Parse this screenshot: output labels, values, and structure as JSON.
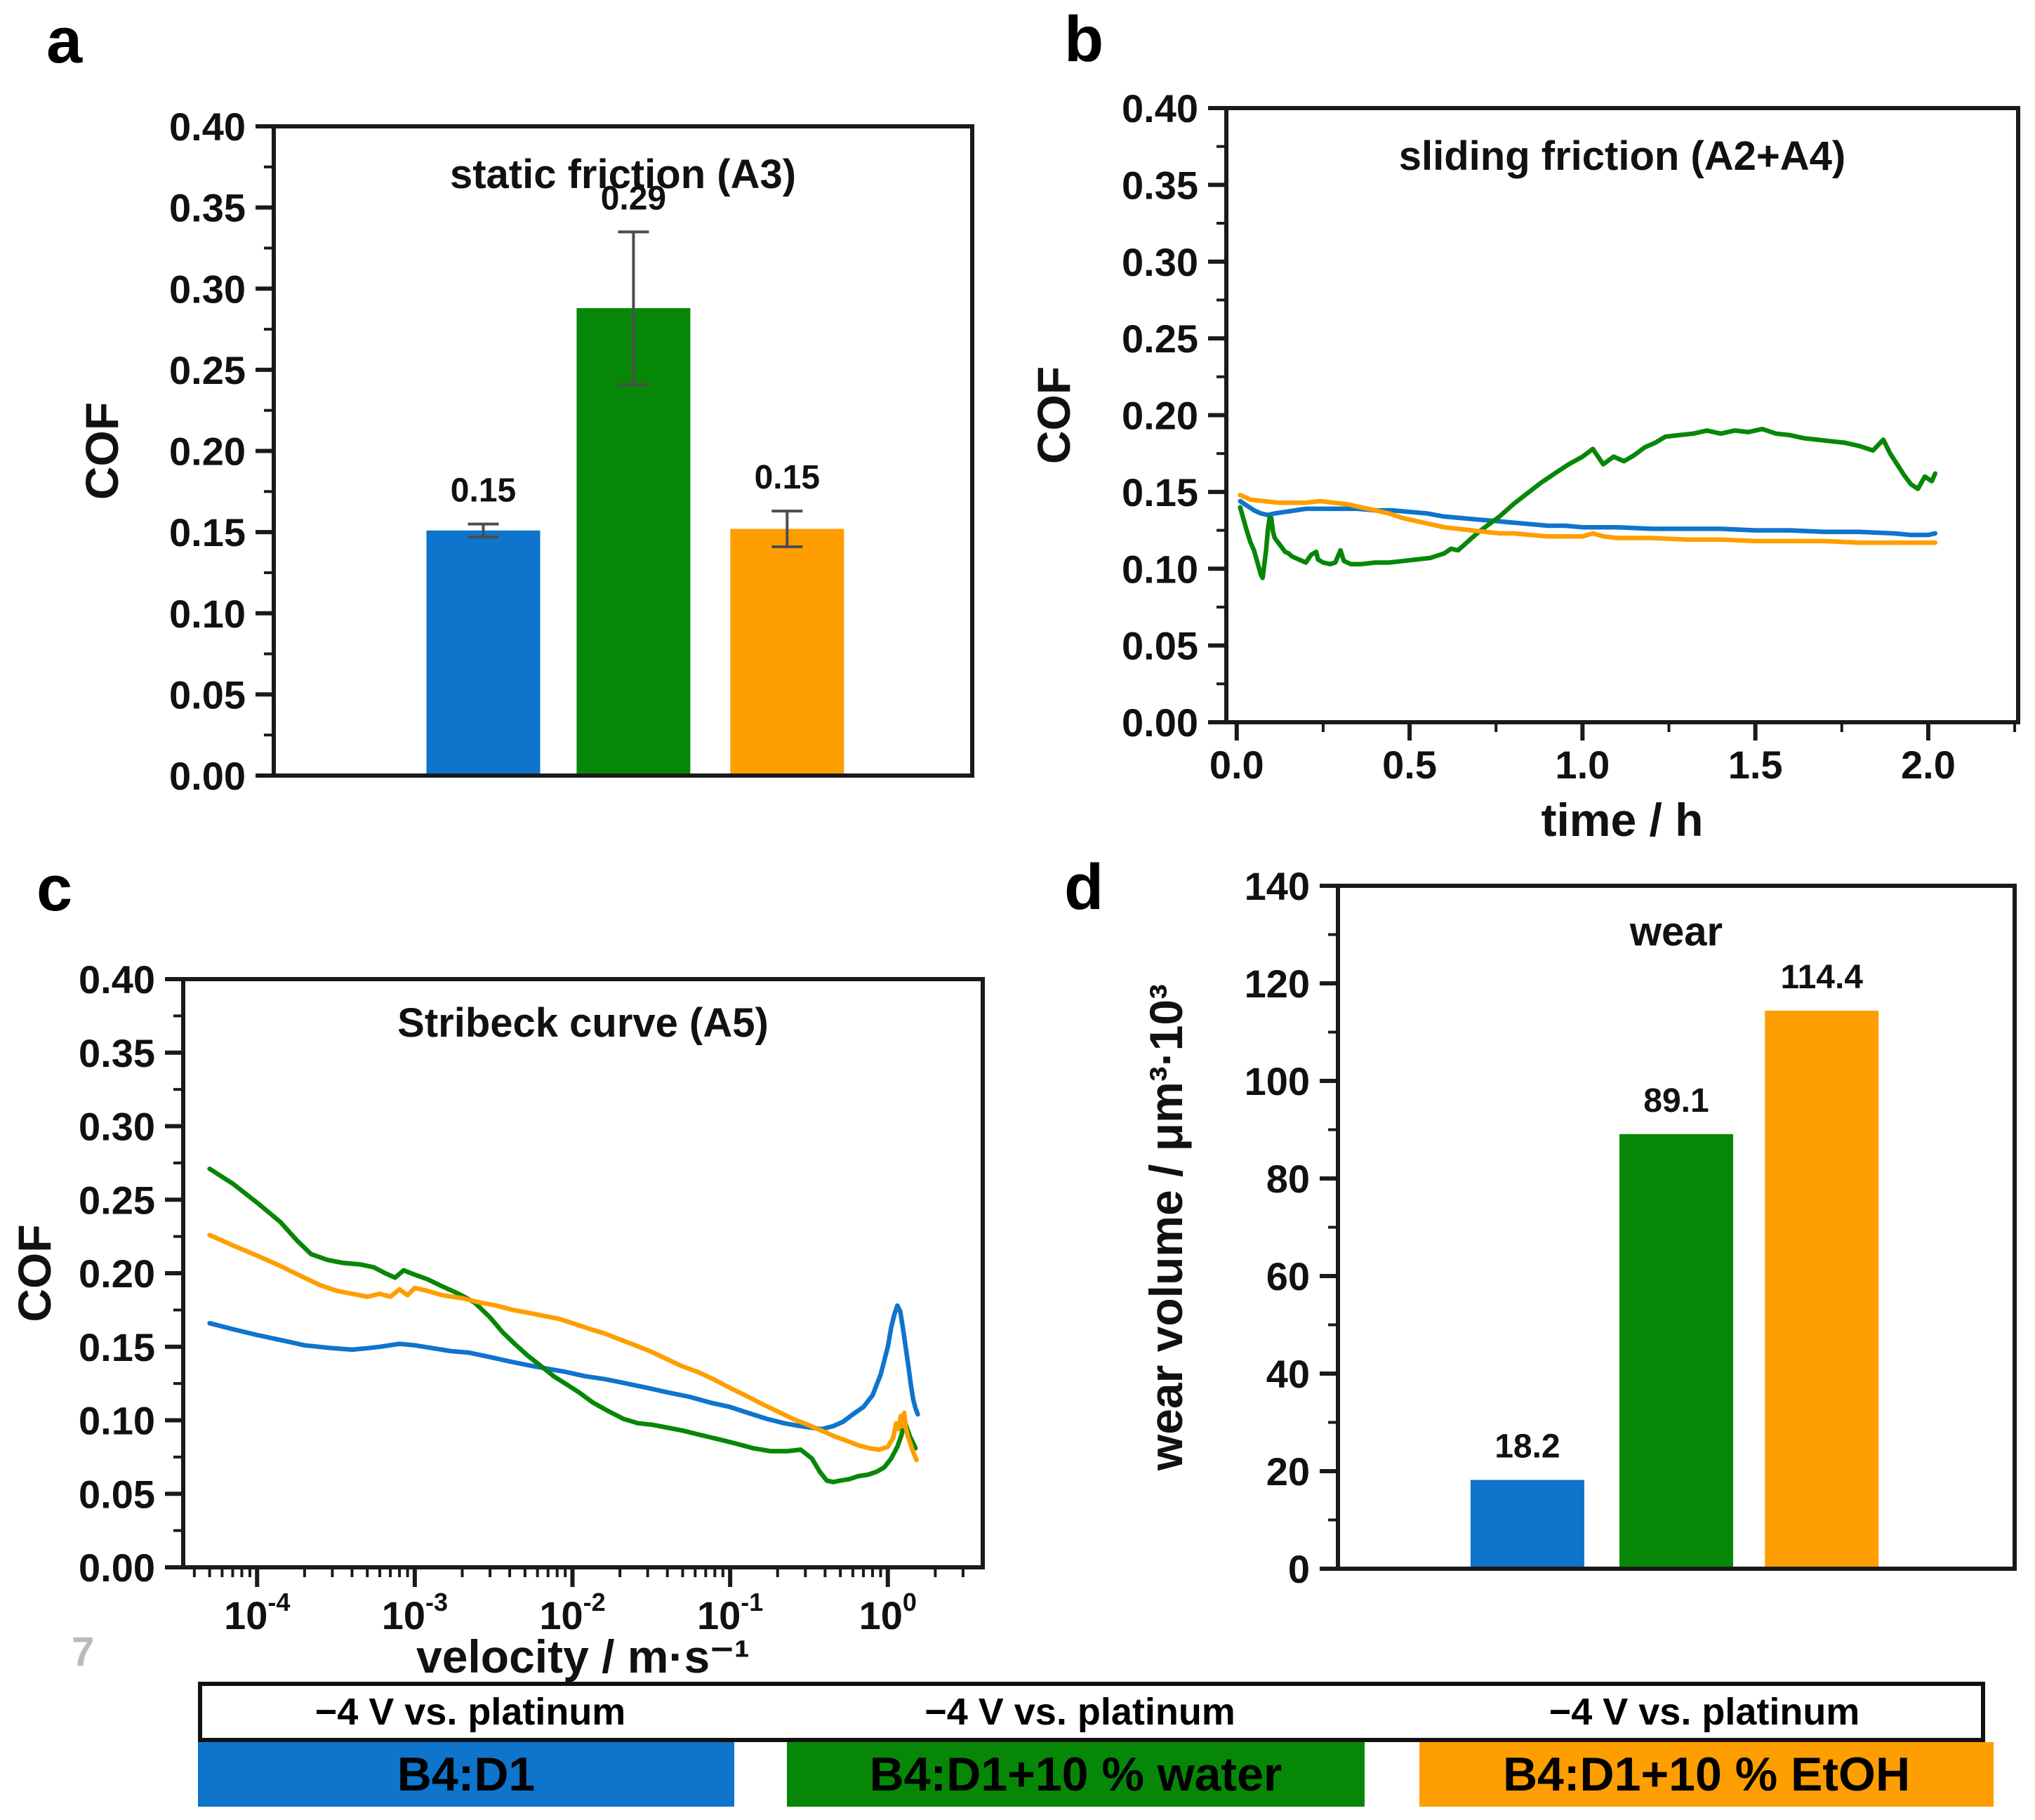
{
  "page_number": "7",
  "panel_letters": {
    "a": "a",
    "b": "b",
    "c": "c",
    "d": "d"
  },
  "colors": {
    "blue": "#0e74cc",
    "green": "#078707",
    "orange": "#ff9e00",
    "axis": "#1a1a1a",
    "error_bar": "#4d4d4d",
    "text": "#111111",
    "page_number_gray": "#bababa"
  },
  "series_names": [
    "B4:D1",
    "B4:D1+10 % water",
    "B4:D1+10 % EtOH"
  ],
  "legend": {
    "groups": [
      {
        "voltage": "−4 V vs. platinum",
        "label": "B4:D1",
        "color": "blue"
      },
      {
        "voltage": "−4 V vs. platinum",
        "label": "B4:D1+10 % water",
        "color": "green"
      },
      {
        "voltage": "−4 V vs. platinum",
        "label": "B4:D1+10 % EtOH",
        "color": "orange"
      }
    ]
  },
  "chart_data": [
    {
      "panel": "a",
      "type": "bar",
      "title": "static friction (A3)",
      "ylabel": "COF",
      "ylim": [
        0,
        0.4
      ],
      "ytick_step": 0.05,
      "ytick_minor_step": 0.025,
      "ytick_decimals": 2,
      "categories": [
        "B4:D1",
        "B4:D1+10 % water",
        "B4:D1+10 % EtOH"
      ],
      "values": [
        0.151,
        0.288,
        0.152
      ],
      "errors": [
        0.004,
        0.047,
        0.011
      ],
      "value_labels": [
        "0.15",
        "0.29",
        "0.15"
      ],
      "bar_colors": [
        "blue",
        "green",
        "orange"
      ]
    },
    {
      "panel": "b",
      "type": "line",
      "title": "sliding friction (A2+A4)",
      "ylabel": "COF",
      "xlabel": "time / h",
      "ylim": [
        0,
        0.4
      ],
      "ytick_step": 0.05,
      "ytick_minor_step": 0.025,
      "ytick_decimals": 2,
      "xscale": "linear",
      "xlim": [
        -0.03,
        2.26
      ],
      "xtick_step": 0.5,
      "xtick_minor_step": 0.25,
      "xtick_decimals": 1,
      "series": [
        {
          "name": "B4:D1",
          "color": "blue",
          "x": [
            0.01,
            0.03,
            0.05,
            0.07,
            0.09,
            0.11,
            0.14,
            0.17,
            0.2,
            0.25,
            0.3,
            0.35,
            0.4,
            0.45,
            0.5,
            0.55,
            0.6,
            0.65,
            0.7,
            0.75,
            0.8,
            0.85,
            0.9,
            0.95,
            1.0,
            1.1,
            1.2,
            1.3,
            1.4,
            1.5,
            1.6,
            1.7,
            1.8,
            1.9,
            1.95,
            2.0,
            2.02
          ],
          "y": [
            0.144,
            0.141,
            0.138,
            0.136,
            0.135,
            0.136,
            0.137,
            0.138,
            0.139,
            0.139,
            0.139,
            0.139,
            0.138,
            0.138,
            0.137,
            0.136,
            0.134,
            0.133,
            0.132,
            0.131,
            0.13,
            0.129,
            0.128,
            0.128,
            0.127,
            0.127,
            0.126,
            0.126,
            0.126,
            0.125,
            0.125,
            0.124,
            0.124,
            0.123,
            0.122,
            0.122,
            0.123
          ]
        },
        {
          "name": "B4:D1+10 % water",
          "color": "green",
          "x": [
            0.01,
            0.02,
            0.03,
            0.04,
            0.05,
            0.06,
            0.07,
            0.075,
            0.08,
            0.085,
            0.09,
            0.095,
            0.1,
            0.105,
            0.11,
            0.12,
            0.13,
            0.14,
            0.15,
            0.16,
            0.18,
            0.2,
            0.215,
            0.23,
            0.235,
            0.25,
            0.27,
            0.285,
            0.3,
            0.31,
            0.33,
            0.36,
            0.4,
            0.44,
            0.48,
            0.52,
            0.56,
            0.6,
            0.62,
            0.64,
            0.66,
            0.68,
            0.7,
            0.73,
            0.76,
            0.8,
            0.84,
            0.88,
            0.92,
            0.96,
            1.0,
            1.03,
            1.06,
            1.09,
            1.12,
            1.15,
            1.18,
            1.21,
            1.24,
            1.28,
            1.32,
            1.36,
            1.4,
            1.44,
            1.48,
            1.52,
            1.56,
            1.6,
            1.64,
            1.68,
            1.72,
            1.76,
            1.8,
            1.84,
            1.87,
            1.89,
            1.91,
            1.93,
            1.95,
            1.97,
            1.99,
            2.01,
            2.02
          ],
          "y": [
            0.14,
            0.132,
            0.124,
            0.117,
            0.112,
            0.104,
            0.096,
            0.094,
            0.103,
            0.112,
            0.125,
            0.133,
            0.133,
            0.124,
            0.12,
            0.117,
            0.114,
            0.111,
            0.11,
            0.108,
            0.106,
            0.104,
            0.109,
            0.111,
            0.106,
            0.104,
            0.103,
            0.104,
            0.112,
            0.105,
            0.103,
            0.103,
            0.104,
            0.104,
            0.105,
            0.106,
            0.107,
            0.11,
            0.113,
            0.112,
            0.116,
            0.12,
            0.124,
            0.129,
            0.134,
            0.142,
            0.149,
            0.156,
            0.162,
            0.168,
            0.173,
            0.178,
            0.168,
            0.173,
            0.17,
            0.174,
            0.179,
            0.182,
            0.186,
            0.187,
            0.188,
            0.19,
            0.188,
            0.19,
            0.189,
            0.191,
            0.188,
            0.187,
            0.185,
            0.184,
            0.183,
            0.182,
            0.18,
            0.177,
            0.184,
            0.175,
            0.168,
            0.161,
            0.155,
            0.152,
            0.16,
            0.157,
            0.162
          ]
        },
        {
          "name": "B4:D1+10 % EtOH",
          "color": "orange",
          "x": [
            0.01,
            0.04,
            0.08,
            0.12,
            0.16,
            0.2,
            0.24,
            0.28,
            0.32,
            0.36,
            0.4,
            0.44,
            0.48,
            0.52,
            0.56,
            0.6,
            0.64,
            0.68,
            0.72,
            0.76,
            0.8,
            0.85,
            0.9,
            0.95,
            1.0,
            1.03,
            1.06,
            1.1,
            1.2,
            1.3,
            1.4,
            1.5,
            1.6,
            1.7,
            1.8,
            1.9,
            2.0,
            2.02
          ],
          "y": [
            0.148,
            0.145,
            0.144,
            0.143,
            0.143,
            0.143,
            0.144,
            0.143,
            0.142,
            0.14,
            0.138,
            0.136,
            0.133,
            0.131,
            0.129,
            0.127,
            0.126,
            0.125,
            0.124,
            0.123,
            0.123,
            0.122,
            0.121,
            0.121,
            0.121,
            0.123,
            0.121,
            0.12,
            0.12,
            0.119,
            0.119,
            0.118,
            0.118,
            0.118,
            0.117,
            0.117,
            0.117,
            0.117
          ]
        }
      ]
    },
    {
      "panel": "c",
      "type": "line",
      "title": "Stribeck curve (A5)",
      "ylabel": "COF",
      "xlabel": "velocity / m·s⁻¹",
      "ylim": [
        0,
        0.4
      ],
      "ytick_step": 0.05,
      "ytick_minor_step": 0.025,
      "ytick_decimals": 2,
      "xscale": "log",
      "xlim": [
        3.4e-05,
        4.0
      ],
      "xtick_exponents": [
        -4,
        -3,
        -2,
        -1,
        0
      ],
      "series": [
        {
          "name": "B4:D1",
          "color": "blue",
          "x": [
            5e-05,
            7e-05,
            0.0001,
            0.00015,
            0.0002,
            0.0003,
            0.0004,
            0.0005,
            0.0006,
            0.0008,
            0.001,
            0.0013,
            0.0017,
            0.0022,
            0.003,
            0.004,
            0.0055,
            0.007,
            0.009,
            0.012,
            0.016,
            0.022,
            0.03,
            0.04,
            0.055,
            0.075,
            0.1,
            0.13,
            0.17,
            0.22,
            0.28,
            0.33,
            0.38,
            0.45,
            0.52,
            0.6,
            0.7,
            0.8,
            0.9,
            1.0,
            1.05,
            1.1,
            1.15,
            1.2,
            1.25,
            1.3,
            1.35,
            1.4,
            1.45,
            1.5,
            1.55
          ],
          "y": [
            0.166,
            0.162,
            0.158,
            0.154,
            0.151,
            0.149,
            0.148,
            0.149,
            0.15,
            0.152,
            0.151,
            0.149,
            0.147,
            0.146,
            0.143,
            0.14,
            0.137,
            0.135,
            0.133,
            0.13,
            0.128,
            0.125,
            0.122,
            0.119,
            0.116,
            0.112,
            0.109,
            0.105,
            0.101,
            0.098,
            0.096,
            0.095,
            0.094,
            0.096,
            0.099,
            0.104,
            0.109,
            0.117,
            0.131,
            0.15,
            0.163,
            0.172,
            0.178,
            0.174,
            0.162,
            0.149,
            0.137,
            0.124,
            0.114,
            0.108,
            0.104
          ]
        },
        {
          "name": "B4:D1+10 % water",
          "color": "green",
          "x": [
            5e-05,
            7e-05,
            0.0001,
            0.00014,
            0.00018,
            0.00022,
            0.00028,
            0.00035,
            0.00045,
            0.00055,
            0.00065,
            0.00075,
            0.00085,
            0.001,
            0.0012,
            0.0015,
            0.0019,
            0.0024,
            0.003,
            0.0036,
            0.0043,
            0.0052,
            0.0063,
            0.0076,
            0.009,
            0.011,
            0.0135,
            0.017,
            0.021,
            0.026,
            0.032,
            0.04,
            0.05,
            0.065,
            0.085,
            0.11,
            0.14,
            0.18,
            0.23,
            0.28,
            0.33,
            0.37,
            0.41,
            0.45,
            0.5,
            0.57,
            0.65,
            0.75,
            0.85,
            0.95,
            1.05,
            1.15,
            1.22,
            1.28,
            1.33,
            1.38,
            1.44,
            1.5
          ],
          "y": [
            0.271,
            0.261,
            0.248,
            0.235,
            0.222,
            0.213,
            0.209,
            0.207,
            0.206,
            0.204,
            0.2,
            0.197,
            0.202,
            0.199,
            0.196,
            0.191,
            0.186,
            0.18,
            0.17,
            0.16,
            0.152,
            0.144,
            0.137,
            0.13,
            0.125,
            0.119,
            0.112,
            0.106,
            0.101,
            0.098,
            0.097,
            0.095,
            0.093,
            0.09,
            0.087,
            0.084,
            0.081,
            0.079,
            0.079,
            0.08,
            0.074,
            0.065,
            0.059,
            0.058,
            0.059,
            0.06,
            0.062,
            0.063,
            0.065,
            0.068,
            0.074,
            0.082,
            0.09,
            0.099,
            0.094,
            0.089,
            0.085,
            0.081
          ]
        },
        {
          "name": "B4:D1+10 % EtOH",
          "color": "orange",
          "x": [
            5e-05,
            7e-05,
            0.0001,
            0.00014,
            0.00019,
            0.00025,
            0.00032,
            0.0004,
            0.0005,
            0.0006,
            0.0007,
            0.0008,
            0.0009,
            0.001,
            0.0012,
            0.0015,
            0.002,
            0.0026,
            0.0033,
            0.0042,
            0.0053,
            0.0066,
            0.0082,
            0.01,
            0.013,
            0.016,
            0.02,
            0.025,
            0.031,
            0.039,
            0.049,
            0.062,
            0.078,
            0.1,
            0.13,
            0.16,
            0.2,
            0.25,
            0.31,
            0.38,
            0.46,
            0.55,
            0.65,
            0.76,
            0.88,
            1.0,
            1.08,
            1.13,
            1.17,
            1.21,
            1.24,
            1.27,
            1.3,
            1.34,
            1.38,
            1.43,
            1.48,
            1.52
          ],
          "y": [
            0.226,
            0.219,
            0.212,
            0.205,
            0.198,
            0.192,
            0.188,
            0.186,
            0.184,
            0.186,
            0.184,
            0.189,
            0.185,
            0.19,
            0.188,
            0.185,
            0.183,
            0.18,
            0.178,
            0.175,
            0.173,
            0.171,
            0.169,
            0.166,
            0.162,
            0.159,
            0.155,
            0.151,
            0.147,
            0.142,
            0.137,
            0.133,
            0.128,
            0.122,
            0.116,
            0.111,
            0.106,
            0.101,
            0.097,
            0.093,
            0.089,
            0.086,
            0.083,
            0.081,
            0.08,
            0.082,
            0.088,
            0.098,
            0.094,
            0.103,
            0.096,
            0.105,
            0.095,
            0.089,
            0.085,
            0.08,
            0.076,
            0.073
          ]
        }
      ]
    },
    {
      "panel": "d",
      "type": "bar",
      "title": "wear",
      "ylabel": "wear volume / μm³·10³",
      "ylim": [
        0,
        140
      ],
      "ytick_step": 20,
      "ytick_minor_step": 10,
      "ytick_decimals": 0,
      "categories": [
        "B4:D1",
        "B4:D1+10 % water",
        "B4:D1+10 % EtOH"
      ],
      "values": [
        18.2,
        89.1,
        114.4
      ],
      "errors": [
        0,
        0,
        0
      ],
      "value_labels": [
        "18.2",
        "89.1",
        "114.4"
      ],
      "bar_colors": [
        "blue",
        "green",
        "orange"
      ]
    }
  ]
}
